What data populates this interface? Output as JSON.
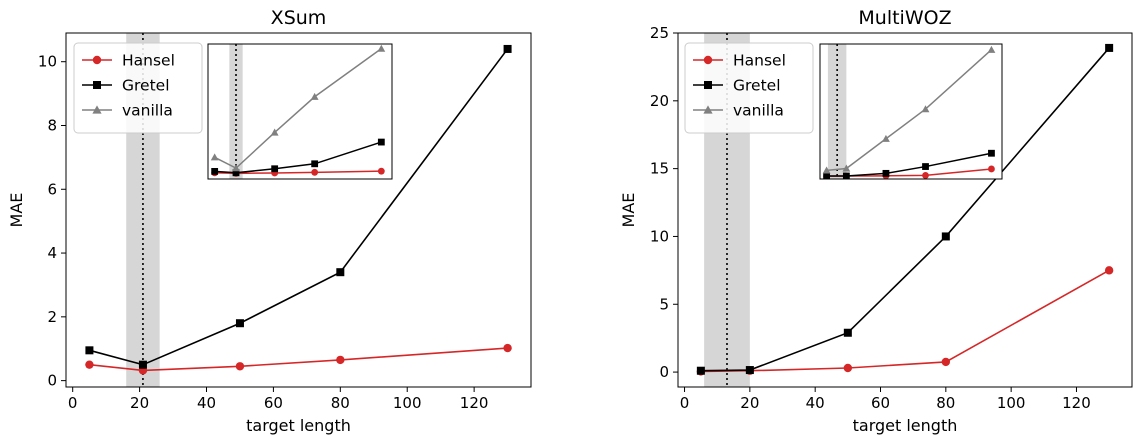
{
  "colors": {
    "Hansel": "#d62728",
    "Gretel": "#000000",
    "vanilla": "#808080",
    "shade": "#c8c8c8"
  },
  "chart_data": [
    {
      "type": "line",
      "title": "XSum",
      "xlabel": "target length",
      "ylabel": "MAE",
      "xlim": [
        -2,
        137
      ],
      "ylim": [
        -0.2,
        10.9
      ],
      "xticks": [
        0,
        20,
        40,
        60,
        80,
        100,
        120
      ],
      "yticks": [
        0,
        2,
        4,
        6,
        8,
        10
      ],
      "legend": "top-left",
      "shade_range": [
        16,
        26
      ],
      "vline": 21,
      "series": [
        {
          "name": "Hansel",
          "marker": "circle",
          "x": [
            5,
            21,
            50,
            80,
            130
          ],
          "y": [
            0.5,
            0.32,
            0.45,
            0.65,
            1.02
          ]
        },
        {
          "name": "Gretel",
          "marker": "square",
          "x": [
            5,
            21,
            50,
            80,
            130
          ],
          "y": [
            0.95,
            0.5,
            1.8,
            3.4,
            10.4
          ]
        }
      ],
      "inset": {
        "xlim": [
          0,
          138
        ],
        "ylim": [
          -1.5,
          42
        ],
        "shade_range": [
          16,
          26
        ],
        "vline": 21,
        "series": [
          {
            "name": "Hansel",
            "marker": "circle",
            "x": [
              5,
              21,
              50,
              80,
              130
            ],
            "y": [
              0.5,
              0.32,
              0.45,
              0.65,
              1.02
            ]
          },
          {
            "name": "Gretel",
            "marker": "square",
            "x": [
              5,
              21,
              50,
              80,
              130
            ],
            "y": [
              0.95,
              0.5,
              1.8,
              3.4,
              10.4
            ]
          },
          {
            "name": "vanilla",
            "marker": "triangle",
            "x": [
              5,
              21,
              50,
              80,
              130
            ],
            "y": [
              5.5,
              2.0,
              13.5,
              25.0,
              40.5
            ]
          }
        ]
      }
    },
    {
      "type": "line",
      "title": "MultiWOZ",
      "xlabel": "target length",
      "ylabel": "MAE",
      "xlim": [
        -2,
        137
      ],
      "ylim": [
        -1.1,
        25
      ],
      "xticks": [
        0,
        20,
        40,
        60,
        80,
        100,
        120
      ],
      "yticks": [
        0,
        5,
        10,
        15,
        20,
        25
      ],
      "legend": "top-left",
      "shade_range": [
        6,
        20
      ],
      "vline": 13,
      "series": [
        {
          "name": "Hansel",
          "marker": "circle",
          "x": [
            5,
            20,
            50,
            80,
            130
          ],
          "y": [
            0.05,
            0.1,
            0.3,
            0.75,
            7.5
          ]
        },
        {
          "name": "Gretel",
          "marker": "square",
          "x": [
            5,
            20,
            50,
            80,
            130
          ],
          "y": [
            0.1,
            0.15,
            2.9,
            10.0,
            23.9
          ]
        }
      ],
      "inset": {
        "xlim": [
          0,
          138
        ],
        "ylim": [
          -3,
          138
        ],
        "shade_range": [
          6,
          20
        ],
        "vline": 13,
        "series": [
          {
            "name": "Hansel",
            "marker": "circle",
            "x": [
              5,
              20,
              50,
              80,
              130
            ],
            "y": [
              0.05,
              0.1,
              0.3,
              0.75,
              7.5
            ]
          },
          {
            "name": "Gretel",
            "marker": "square",
            "x": [
              5,
              20,
              50,
              80,
              130
            ],
            "y": [
              0.1,
              0.15,
              2.9,
              10.0,
              23.9
            ]
          },
          {
            "name": "vanilla",
            "marker": "triangle",
            "x": [
              5,
              20,
              50,
              80,
              130
            ],
            "y": [
              6,
              8,
              39,
              70,
              132
            ]
          }
        ]
      }
    }
  ]
}
